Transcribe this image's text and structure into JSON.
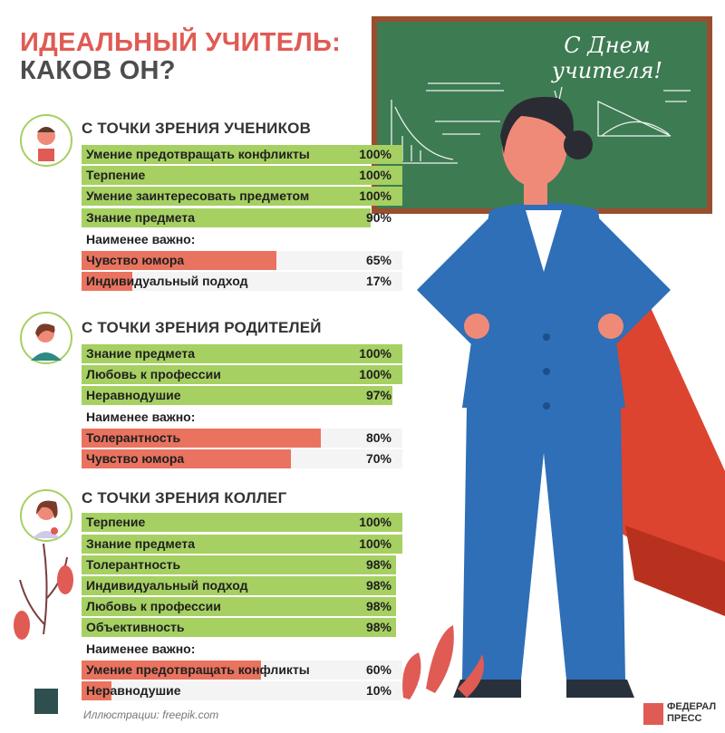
{
  "title": {
    "line1": "ИДЕАЛЬНЫЙ УЧИТЕЛЬ:",
    "line2": "КАКОВ ОН?"
  },
  "board_text": "С Днем учителя!",
  "least_label": "Наименее важно:",
  "colors": {
    "accent_red": "#e05b54",
    "green_bar": "#a6d062",
    "red_bar": "#e9735f",
    "board": "#3d7b53"
  },
  "sections": [
    {
      "title": "С ТОЧКИ ЗРЕНИЯ УЧЕНИКОВ",
      "top": [
        {
          "label": "Умение предотвращать конфликты",
          "value": "100%",
          "pct": 100
        },
        {
          "label": "Терпение",
          "value": "100%",
          "pct": 100
        },
        {
          "label": "Умение заинтересовать предметом",
          "value": "100%",
          "pct": 100
        },
        {
          "label": "Знание предмета",
          "value": "90%",
          "pct": 90
        }
      ],
      "least": [
        {
          "label": "Чувство юмора",
          "value": "65%",
          "pct": 65
        },
        {
          "label": "Индивидуальный подход",
          "value": "17%",
          "pct": 17
        }
      ]
    },
    {
      "title": "С ТОЧКИ ЗРЕНИЯ РОДИТЕЛЕЙ",
      "top": [
        {
          "label": "Знание предмета",
          "value": "100%",
          "pct": 100
        },
        {
          "label": "Любовь к профессии",
          "value": "100%",
          "pct": 100
        },
        {
          "label": "Неравнодушие",
          "value": "97%",
          "pct": 97
        }
      ],
      "least": [
        {
          "label": "Толерантность",
          "value": "80%",
          "pct": 80
        },
        {
          "label": "Чувство юмора",
          "value": "70%",
          "pct": 70
        }
      ]
    },
    {
      "title": "С ТОЧКИ ЗРЕНИЯ КОЛЛЕГ",
      "top": [
        {
          "label": "Терпение",
          "value": "100%",
          "pct": 100
        },
        {
          "label": "Знание предмета",
          "value": "100%",
          "pct": 100
        },
        {
          "label": "Толерантность",
          "value": "98%",
          "pct": 98
        },
        {
          "label": "Индивидуальный подход",
          "value": "98%",
          "pct": 98
        },
        {
          "label": "Любовь к профессии",
          "value": "98%",
          "pct": 98
        },
        {
          "label": "Объективность",
          "value": "98%",
          "pct": 98
        }
      ],
      "least": [
        {
          "label": "Умение предотвращать конфликты",
          "value": "60%",
          "pct": 60
        },
        {
          "label": "Неравнодушие",
          "value": "10%",
          "pct": 10
        }
      ]
    }
  ],
  "credit": "Иллюстрации: freepik.com",
  "logo": {
    "line1": "ФЕДЕРАЛ",
    "line2": "ПРЕСС"
  }
}
